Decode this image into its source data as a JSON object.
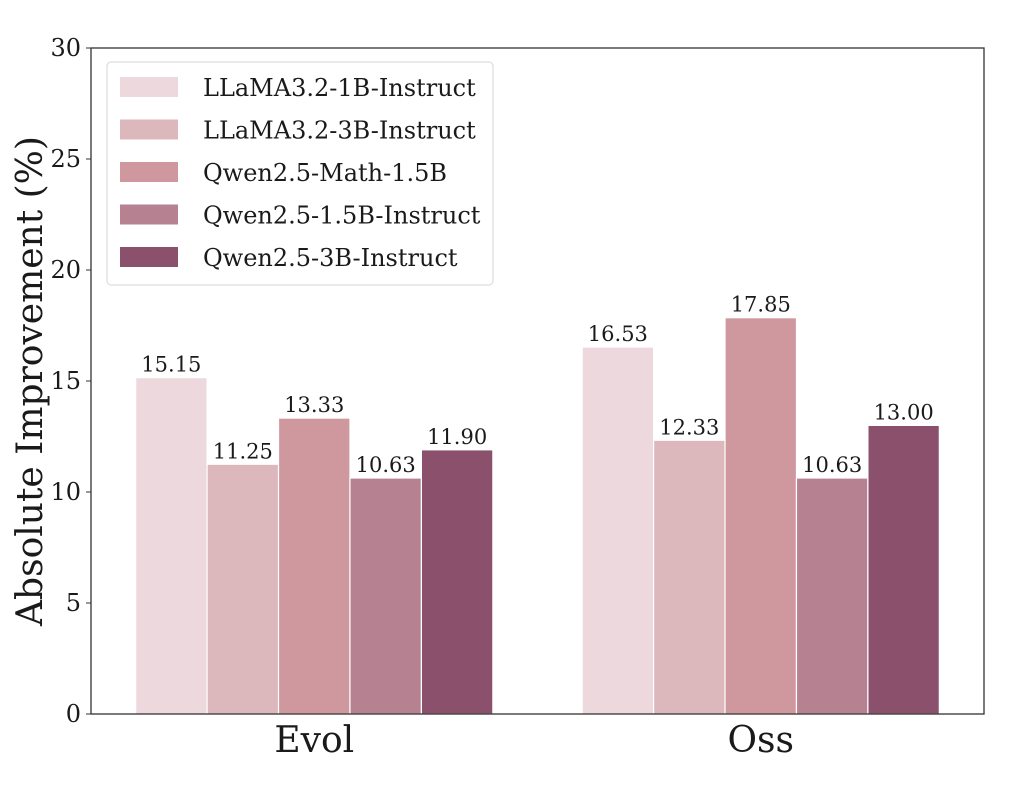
{
  "chart_data": {
    "type": "bar",
    "title": "",
    "xlabel": "",
    "ylabel": "Absolute Improvement (%)",
    "ylim": [
      0,
      30
    ],
    "yticks": [
      0,
      5,
      10,
      15,
      20,
      25,
      30
    ],
    "grid": false,
    "legend_position": "top-left",
    "categories": [
      "Evol",
      "Oss"
    ],
    "series": [
      {
        "name": "LLaMA3.2-1B-Instruct",
        "color": "#edd8dd",
        "values": [
          15.15,
          16.53
        ],
        "labels": [
          "15.15",
          "16.53"
        ]
      },
      {
        "name": "LLaMA3.2-3B-Instruct",
        "color": "#dcb8bd",
        "values": [
          11.25,
          12.33
        ],
        "labels": [
          "11.25",
          "12.33"
        ]
      },
      {
        "name": "Qwen2.5-Math-1.5B",
        "color": "#cf979e",
        "values": [
          13.33,
          17.85
        ],
        "labels": [
          "13.33",
          "17.85"
        ]
      },
      {
        "name": "Qwen2.5-1.5B-Instruct",
        "color": "#b68190",
        "values": [
          10.63,
          10.63
        ],
        "labels": [
          "10.63",
          "10.63"
        ]
      },
      {
        "name": "Qwen2.5-3B-Instruct",
        "color": "#8a506c",
        "values": [
          11.9,
          13.0
        ],
        "labels": [
          "11.90",
          "13.00"
        ]
      }
    ]
  }
}
